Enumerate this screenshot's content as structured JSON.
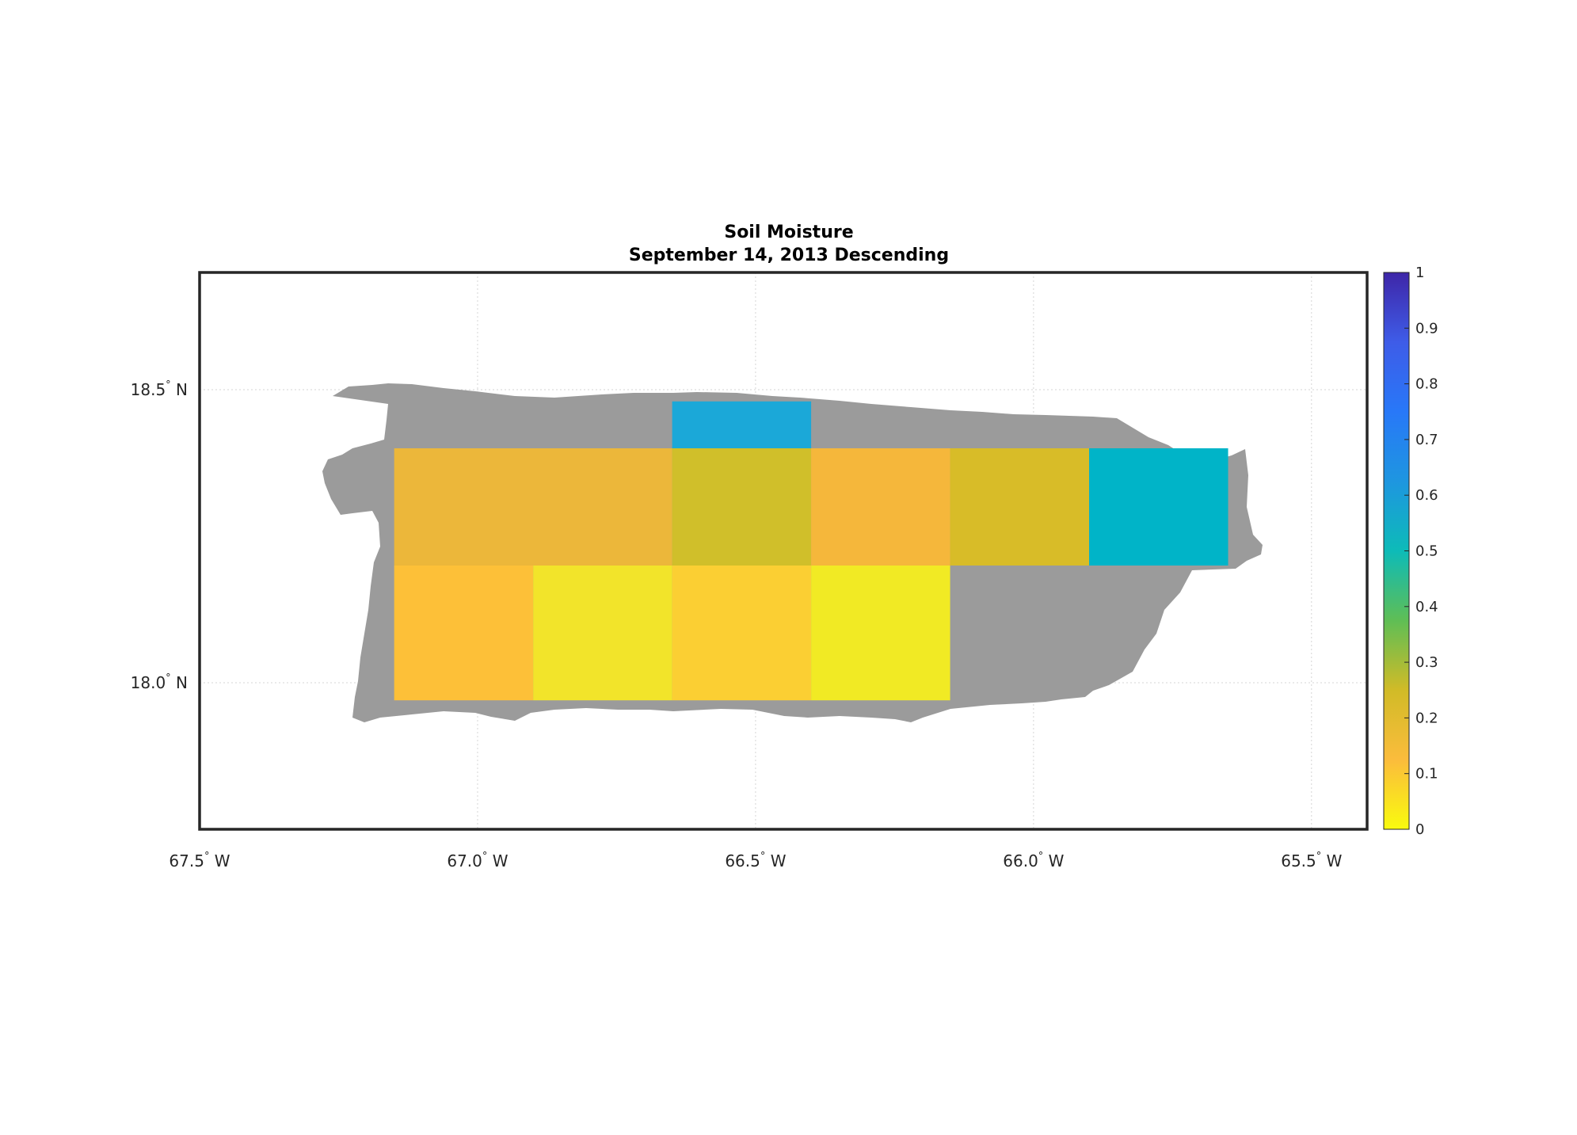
{
  "title": {
    "line1": "Soil Moisture",
    "line2": "September 14, 2013 Descending"
  },
  "axes": {
    "lon_range": [
      -67.5,
      -65.4
    ],
    "lat_range": [
      17.75,
      18.7
    ],
    "lon_ticks": [
      {
        "value": -67.5,
        "num": "67.5",
        "dir": "W"
      },
      {
        "value": -67.0,
        "num": "67.0",
        "dir": "W"
      },
      {
        "value": -66.5,
        "num": "66.5",
        "dir": "W"
      },
      {
        "value": -66.0,
        "num": "66.0",
        "dir": "W"
      },
      {
        "value": -65.5,
        "num": "65.5",
        "dir": "W"
      }
    ],
    "lat_ticks": [
      {
        "value": 18.5,
        "num": "18.5",
        "dir": "N"
      },
      {
        "value": 18.0,
        "num": "18.0",
        "dir": "N"
      }
    ],
    "degree_symbol": "°",
    "grid": true
  },
  "land_color": "#9b9b9b",
  "colorbar": {
    "range": [
      0,
      1
    ],
    "ticks": [
      "0",
      "0.1",
      "0.2",
      "0.3",
      "0.4",
      "0.5",
      "0.6",
      "0.7",
      "0.8",
      "0.9",
      "1"
    ],
    "colors": [
      "#f9fb0e",
      "#fbbc3c",
      "#d1bb27",
      "#5fbe55",
      "#0dbbb8",
      "#1e96e0",
      "#2878f8",
      "#3e5ce8",
      "#3e26a8"
    ]
  },
  "chart_data": {
    "type": "heatmap",
    "title": "Soil Moisture September 14, 2013 Descending",
    "xlabel": "",
    "ylabel": "",
    "xlim": [
      -67.5,
      -65.4
    ],
    "ylim": [
      17.75,
      18.7
    ],
    "cells": [
      {
        "lon": [
          -66.65,
          -66.4
        ],
        "lat": [
          18.4,
          18.48
        ],
        "value": 0.6,
        "color": "#1ba8d8"
      },
      {
        "lon": [
          -67.15,
          -66.65
        ],
        "lat": [
          18.2,
          18.4
        ],
        "value": 0.19,
        "color": "#ecb73a"
      },
      {
        "lon": [
          -66.65,
          -66.4
        ],
        "lat": [
          18.2,
          18.4
        ],
        "value": 0.27,
        "color": "#d0bf2a"
      },
      {
        "lon": [
          -66.4,
          -66.15
        ],
        "lat": [
          18.2,
          18.4
        ],
        "value": 0.18,
        "color": "#f5b73b"
      },
      {
        "lon": [
          -66.15,
          -65.9
        ],
        "lat": [
          18.2,
          18.4
        ],
        "value": 0.26,
        "color": "#d8bc28"
      },
      {
        "lon": [
          -65.9,
          -65.65
        ],
        "lat": [
          18.2,
          18.4
        ],
        "value": 0.53,
        "color": "#00b4c8"
      },
      {
        "lon": [
          -67.15,
          -66.9
        ],
        "lat": [
          17.97,
          18.2
        ],
        "value": 0.14,
        "color": "#fdc038"
      },
      {
        "lon": [
          -66.9,
          -66.65
        ],
        "lat": [
          17.97,
          18.2
        ],
        "value": 0.04,
        "color": "#f2e42a"
      },
      {
        "lon": [
          -66.65,
          -66.4
        ],
        "lat": [
          17.97,
          18.2
        ],
        "value": 0.11,
        "color": "#fbcf33"
      },
      {
        "lon": [
          -66.4,
          -66.15
        ],
        "lat": [
          17.97,
          18.2
        ],
        "value": 0.03,
        "color": "#f1ea24"
      }
    ],
    "colorbar_range": [
      0,
      1
    ]
  }
}
